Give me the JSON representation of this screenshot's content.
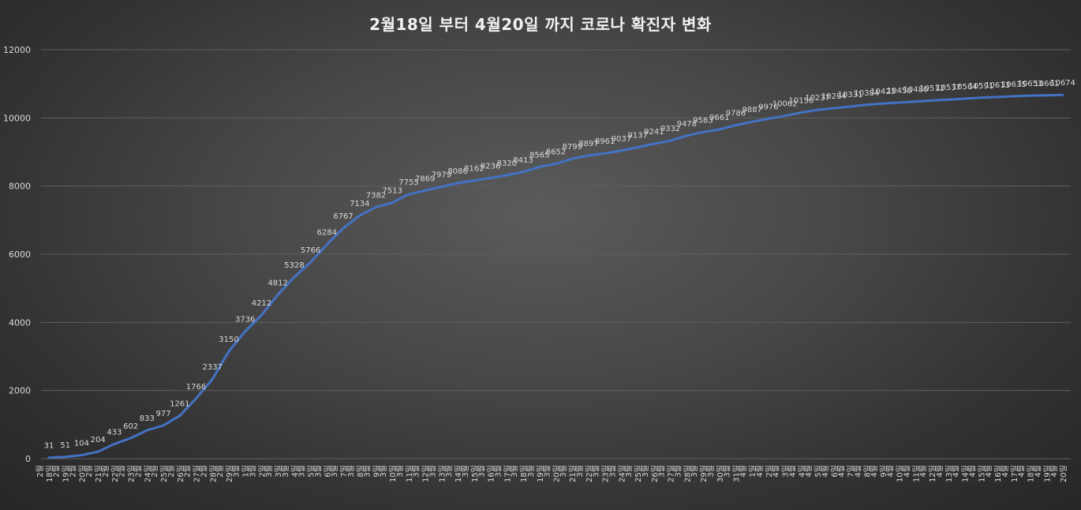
{
  "chart_data": {
    "type": "line",
    "title": "2월18일 부터 4월20일 까지 코로나 확진자 변화",
    "xlabel": "",
    "ylabel": "",
    "ylim": [
      0,
      12000
    ],
    "yticks": [
      0,
      2000,
      4000,
      6000,
      8000,
      10000,
      12000
    ],
    "grid": true,
    "colors": {
      "line": "#4472c4",
      "grid": "#5f5f5f",
      "text": "#d9d9d9",
      "title": "#f2f2f2"
    },
    "categories": [
      "2월 18일",
      "2월 19일",
      "2월 20일",
      "2월 21일",
      "2월 22일",
      "2월 23일",
      "2월 24일",
      "2월 25일",
      "2월 26일",
      "2월 27일",
      "2월 28일",
      "2월 29일",
      "3월 1일",
      "3월 2일",
      "3월 3일",
      "3월 4일",
      "3월 5일",
      "3월 6일",
      "3월 7일",
      "3월 8일",
      "3월 9일",
      "3월 10일",
      "3월 11일",
      "3월 12일",
      "3월 13일",
      "3월 14일",
      "3월 15일",
      "3월 16일",
      "3월 17일",
      "3월 18일",
      "3월 19일",
      "3월 20일",
      "3월 21일",
      "3월 22일",
      "3월 23일",
      "3월 24일",
      "3월 25일",
      "3월 26일",
      "3월 27일",
      "3월 28일",
      "3월 29일",
      "3월 30일",
      "3월 31일",
      "4월 1일",
      "4월 2일",
      "4월 3일",
      "4월 4일",
      "4월 5일",
      "4월 6일",
      "4월 7일",
      "4월 8일",
      "4월 9일",
      "4월 10일",
      "4월 11일",
      "4월 12일",
      "4월 13일",
      "4월 14일",
      "4월 15일",
      "4월 16일",
      "4월 17일",
      "4월 18일",
      "4월 19일",
      "4월 20일"
    ],
    "series": [
      {
        "values": [
          31,
          51,
          104,
          204,
          433,
          602,
          833,
          977,
          1261,
          1766,
          2337,
          3150,
          3736,
          4212,
          4812,
          5328,
          5766,
          6284,
          6767,
          7134,
          7382,
          7513,
          7755,
          7869,
          7979,
          8086,
          8162,
          8236,
          8320,
          8413,
          8565,
          8652,
          8799,
          8897,
          8961,
          9037,
          9137,
          9241,
          9332,
          9478,
          9583,
          9661,
          9786,
          9887,
          9976,
          10062,
          10156,
          10237,
          10284,
          10331,
          10384,
          10423,
          10450,
          10480,
          10512,
          10537,
          10564,
          10591,
          10613,
          10635,
          10653,
          10661,
          10674
        ]
      }
    ]
  }
}
